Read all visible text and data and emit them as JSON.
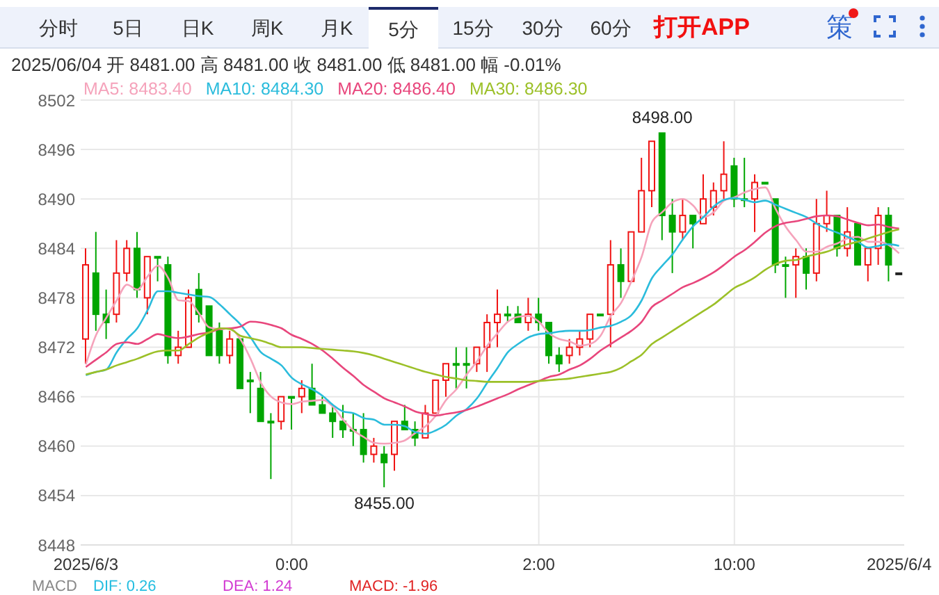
{
  "chart_data": {
    "type": "candlestick",
    "subtitle": "2025/06/04 开 8481.00 高 8481.00 收 8481.00 低 8481.00 幅 -0.01%",
    "categories": [
      "2025/6/3",
      null,
      null,
      null,
      null,
      null,
      null,
      null,
      null,
      null,
      null,
      null,
      null,
      null,
      null,
      null,
      null,
      null,
      null,
      null,
      "0:00",
      null,
      null,
      null,
      null,
      null,
      null,
      null,
      null,
      null,
      null,
      null,
      null,
      null,
      null,
      null,
      null,
      null,
      null,
      null,
      null,
      null,
      null,
      null,
      "2:00",
      null,
      null,
      null,
      null,
      null,
      null,
      null,
      null,
      null,
      null,
      null,
      null,
      null,
      null,
      null,
      null,
      null,
      null,
      "10:00",
      null,
      null,
      null,
      null,
      null,
      null,
      null,
      null,
      null,
      null,
      null,
      null,
      null,
      null,
      null,
      "2025/6/4"
    ],
    "ohlc": [
      [
        8473,
        8484,
        8470,
        8482
      ],
      [
        8481,
        8486,
        8474,
        8476
      ],
      [
        8476,
        8479,
        8473,
        8475
      ],
      [
        8476,
        8485,
        8475,
        8481
      ],
      [
        8481,
        8485,
        8480,
        8484
      ],
      [
        8484,
        8486,
        8478,
        8479
      ],
      [
        8478,
        8483,
        8476,
        8483
      ],
      [
        8483,
        8483,
        8480,
        8483
      ],
      [
        8482,
        8483,
        8470,
        8471
      ],
      [
        8471,
        8474,
        8470,
        8472
      ],
      [
        8472,
        8479,
        8472,
        8478
      ],
      [
        8479,
        8481,
        8475,
        8476
      ],
      [
        8477,
        8477,
        8471,
        8471
      ],
      [
        8474,
        8475,
        8470,
        8471
      ],
      [
        8471,
        8474,
        8470,
        8473
      ],
      [
        8473,
        8473,
        8467,
        8467
      ],
      [
        8468,
        8469,
        8464,
        8468
      ],
      [
        8467,
        8469,
        8463,
        8463
      ],
      [
        8463,
        8464,
        8456,
        8463
      ],
      [
        8463,
        8466,
        8462,
        8466
      ],
      [
        8466,
        8466,
        8462,
        8466
      ],
      [
        8466,
        8468,
        8464,
        8467
      ],
      [
        8467,
        8470,
        8465,
        8465
      ],
      [
        8465,
        8466,
        8464,
        8464
      ],
      [
        8464,
        8465,
        8461,
        8463
      ],
      [
        8463,
        8465,
        8461,
        8462
      ],
      [
        8462,
        8464,
        8460,
        8462
      ],
      [
        8462,
        8464,
        8458,
        8459
      ],
      [
        8459,
        8461,
        8458,
        8460
      ],
      [
        8459,
        8460,
        8455,
        8458
      ],
      [
        8459,
        8463,
        8457,
        8463
      ],
      [
        8463,
        8465,
        8462,
        8462
      ],
      [
        8462,
        8463,
        8460,
        8461
      ],
      [
        8461,
        8465,
        8461,
        8464
      ],
      [
        8464,
        8468,
        8464,
        8468
      ],
      [
        8468,
        8470,
        8466,
        8470
      ],
      [
        8470,
        8472,
        8467,
        8470
      ],
      [
        8470,
        8472,
        8467,
        8470
      ],
      [
        8470,
        8472,
        8469,
        8472
      ],
      [
        8472,
        8476,
        8469,
        8475
      ],
      [
        8475,
        8479,
        8472,
        8476
      ],
      [
        8476,
        8477,
        8475,
        8476
      ],
      [
        8476,
        8477,
        8475,
        8475
      ],
      [
        8475,
        8478,
        8474,
        8476
      ],
      [
        8476,
        8478,
        8474,
        8475
      ],
      [
        8475,
        8475,
        8470,
        8471
      ],
      [
        8471,
        8472,
        8469,
        8470
      ],
      [
        8471,
        8473,
        8470,
        8472
      ],
      [
        8472,
        8474,
        8471,
        8473
      ],
      [
        8473,
        8476,
        8472,
        8476
      ],
      [
        8476,
        8476,
        8476,
        8476
      ],
      [
        8476,
        8485,
        8472,
        8482
      ],
      [
        8482,
        8484,
        8478,
        8480
      ],
      [
        8480,
        8486,
        8480,
        8486
      ],
      [
        8486,
        8495,
        8486,
        8491
      ],
      [
        8491,
        8497,
        8489,
        8497
      ],
      [
        8498,
        8498,
        8485,
        8488
      ],
      [
        8488,
        8490,
        8481,
        8486
      ],
      [
        8486,
        8490,
        8485,
        8488
      ],
      [
        8488,
        8488,
        8484,
        8487
      ],
      [
        8487,
        8493,
        8487,
        8490
      ],
      [
        8489,
        8492,
        8488,
        8491
      ],
      [
        8491,
        8497,
        8490,
        8493
      ],
      [
        8494,
        8495,
        8489,
        8490
      ],
      [
        8490,
        8495,
        8489,
        8490
      ],
      [
        8490,
        8493,
        8486,
        8492
      ],
      [
        8492,
        8492,
        8492,
        8492
      ],
      [
        8490,
        8490,
        8481,
        8482
      ],
      [
        8482,
        8483,
        8478,
        8482
      ],
      [
        8482,
        8484,
        8478,
        8483
      ],
      [
        8483,
        8484,
        8479,
        8481
      ],
      [
        8481,
        8490,
        8480,
        8487
      ],
      [
        8487,
        8491,
        8486,
        8488
      ],
      [
        8488,
        8488,
        8483,
        8484
      ],
      [
        8484,
        8489,
        8483,
        8486
      ],
      [
        8487,
        8487,
        8482,
        8482
      ],
      [
        8482,
        8484,
        8480,
        8484
      ],
      [
        8484,
        8489,
        8482,
        8488
      ],
      [
        8488,
        8489,
        8480,
        8482
      ],
      [
        8481,
        8481,
        8481,
        8481
      ]
    ],
    "colors": [
      "#f01414",
      "#00a600",
      "#00a600",
      "#f01414",
      "#f01414",
      "#00a600",
      "#f01414",
      "#00a600",
      "#00a600",
      "#f01414",
      "#f01414",
      "#00a600",
      "#00a600",
      "#00a600",
      "#f01414",
      "#00a600",
      "#00a600",
      "#00a600",
      "#00a600",
      "#f01414",
      "#00a600",
      "#f01414",
      "#00a600",
      "#00a600",
      "#00a600",
      "#00a600",
      "#00a600",
      "#00a600",
      "#f01414",
      "#00a600",
      "#f01414",
      "#00a600",
      "#00a600",
      "#f01414",
      "#f01414",
      "#f01414",
      "#00a600",
      "#00a600",
      "#f01414",
      "#f01414",
      "#f01414",
      "#00a600",
      "#00a600",
      "#f01414",
      "#00a600",
      "#00a600",
      "#00a600",
      "#f01414",
      "#f01414",
      "#f01414",
      "#00a600",
      "#f01414",
      "#00a600",
      "#f01414",
      "#f01414",
      "#f01414",
      "#00a600",
      "#00a600",
      "#f01414",
      "#00a600",
      "#f01414",
      "#f01414",
      "#f01414",
      "#00a600",
      "#00a600",
      "#f01414",
      "#00a600",
      "#00a600",
      "#00a600",
      "#f01414",
      "#00a600",
      "#f01414",
      "#f01414",
      "#00a600",
      "#f01414",
      "#00a600",
      "#f01414",
      "#f01414",
      "#00a600",
      "#222222"
    ],
    "series": [
      {
        "type": "line",
        "name": "MA5: 8483.40",
        "color": "#f5a3bb",
        "values": [
          8469.9,
          8473.5,
          8475.6,
          8477.7,
          8479.6,
          8479.0,
          8480.6,
          8481.9,
          8480.4,
          8477.7,
          8477.6,
          8476.1,
          8474.4,
          8474.2,
          8474.3,
          8473.0,
          8470.6,
          8467.7,
          8466.0,
          8465.3,
          8465.1,
          8465.4,
          8465.5,
          8465.6,
          8464.8,
          8463.2,
          8461.9,
          8461.1,
          8460.4,
          8460.3,
          8460.4,
          8460.7,
          8461.6,
          8462.4,
          8463.7,
          8465.6,
          8466.9,
          8468.7,
          8470.3,
          8472.2,
          8473.7,
          8475.1,
          8475.7,
          8475.8,
          8475.1,
          8473.7,
          8473.0,
          8472.7,
          8472.2,
          8472.4,
          8473.4,
          8475.8,
          8477.4,
          8480.0,
          8483.0,
          8487.2,
          8488.4,
          8489.6,
          8490.0,
          8489.2,
          8487.8,
          8488.4,
          8489.8,
          8490.2,
          8490.8,
          8491.2,
          8491.4,
          8488.8,
          8486.6,
          8485.0,
          8483.6,
          8483.6,
          8484.2,
          8484.6,
          8485.2,
          8485.4,
          8484.8,
          8484.8,
          8484.4,
          8483.4
        ]
      },
      {
        "type": "line",
        "name": "MA10: 8484.30",
        "color": "#2bbcdc",
        "values": [
          8468.6,
          8469.0,
          8469.3,
          8471.4,
          8473.0,
          8474.3,
          8476.5,
          8478.8,
          8478.8,
          8478.6,
          8478.4,
          8478.2,
          8478.1,
          8477.2,
          8476.0,
          8474.8,
          8473.2,
          8471.4,
          8470.6,
          8469.8,
          8468.3,
          8467.5,
          8466.9,
          8466.1,
          8465.0,
          8464.2,
          8464.0,
          8463.4,
          8463.2,
          8462.6,
          8462.6,
          8462.4,
          8461.7,
          8461.5,
          8461.9,
          8462.6,
          8463.7,
          8464.5,
          8465.8,
          8467.7,
          8469.5,
          8471.4,
          8472.4,
          8473.2,
          8473.6,
          8473.7,
          8473.9,
          8474.0,
          8474.0,
          8474.1,
          8474.4,
          8474.6,
          8475.1,
          8475.9,
          8477.7,
          8480.4,
          8481.9,
          8483.3,
          8485.1,
          8486.7,
          8487.8,
          8489.1,
          8489.9,
          8490.1,
          8489.9,
          8489.6,
          8489.8,
          8489.3,
          8488.8,
          8488.3,
          8487.8,
          8487.0,
          8486.4,
          8485.9,
          8485.4,
          8484.8,
          8484.1,
          8484.3,
          8484.5,
          8484.3
        ]
      },
      {
        "type": "line",
        "name": "MA20: 8486.40",
        "color": "#e8467c",
        "values": [
          8469.6,
          8470.5,
          8471.4,
          8472.4,
          8472.6,
          8472.4,
          8473.0,
          8473.6,
          8473.3,
          8473.1,
          8473.3,
          8473.6,
          8473.8,
          8474.2,
          8474.3,
          8474.5,
          8475.1,
          8475.0,
          8474.7,
          8474.3,
          8473.5,
          8473.0,
          8472.4,
          8471.6,
          8470.6,
          8469.5,
          8468.5,
          8467.4,
          8466.6,
          8465.8,
          8465.3,
          8464.8,
          8464.2,
          8463.9,
          8463.7,
          8463.9,
          8464.1,
          8464.4,
          8464.8,
          8465.3,
          8465.8,
          8466.3,
          8466.9,
          8467.4,
          8467.9,
          8468.4,
          8468.7,
          8469.3,
          8469.8,
          8470.6,
          8471.6,
          8472.4,
          8473.2,
          8474.0,
          8475.1,
          8476.9,
          8477.7,
          8478.5,
          8479.3,
          8479.8,
          8480.4,
          8481.1,
          8482.0,
          8483.0,
          8483.8,
          8484.8,
          8485.9,
          8486.7,
          8487.1,
          8487.3,
          8487.6,
          8487.9,
          8488.0,
          8487.9,
          8487.5,
          8487.1,
          8486.8,
          8486.9,
          8486.6,
          8486.4
        ]
      },
      {
        "type": "line",
        "name": "MA30: 8486.30",
        "color": "#9cc028",
        "values": [
          8468.7,
          8469.0,
          8469.3,
          8469.8,
          8470.2,
          8470.6,
          8471.1,
          8471.5,
          8471.6,
          8471.6,
          8472.4,
          8473.2,
          8473.8,
          8474.3,
          8474.2,
          8473.4,
          8473.1,
          8472.8,
          8472.4,
          8472.0,
          8472.0,
          8472.0,
          8471.9,
          8471.8,
          8471.7,
          8471.6,
          8471.5,
          8471.3,
          8471.0,
          8470.6,
          8470.2,
          8469.8,
          8469.4,
          8469.0,
          8468.7,
          8468.4,
          8468.2,
          8468.0,
          8467.9,
          8467.8,
          8467.8,
          8467.8,
          8467.8,
          8467.8,
          8467.9,
          8468.0,
          8468.1,
          8468.2,
          8468.4,
          8468.6,
          8468.8,
          8469.0,
          8469.5,
          8470.3,
          8471.1,
          8472.4,
          8473.2,
          8474.0,
          8474.8,
          8475.6,
          8476.4,
          8477.2,
          8478.2,
          8479.2,
          8479.8,
          8480.5,
          8481.4,
          8482.1,
          8482.5,
          8482.6,
          8483.0,
          8483.3,
          8483.6,
          8484.1,
          8484.5,
          8484.8,
          8485.2,
          8485.6,
          8486.0,
          8486.3
        ]
      }
    ],
    "ylim": [
      8448,
      8502
    ],
    "yticks": [
      8448,
      8454,
      8460,
      8466,
      8472,
      8478,
      8484,
      8490,
      8496,
      8502
    ],
    "grid": true,
    "legend": "top left",
    "marker": "none",
    "annotations": [
      "分时",
      "5日",
      "日K",
      "周K",
      "月K",
      "5分",
      "15分",
      "30分",
      "60分",
      "打开APP",
      "策",
      {
        "text": "8498.00",
        "y": 8498
      },
      {
        "text": "8455.00",
        "y": 8455
      },
      "MACD",
      "DIF: 0.26",
      "DEA: 1.24",
      "MACD: -1.96"
    ]
  }
}
